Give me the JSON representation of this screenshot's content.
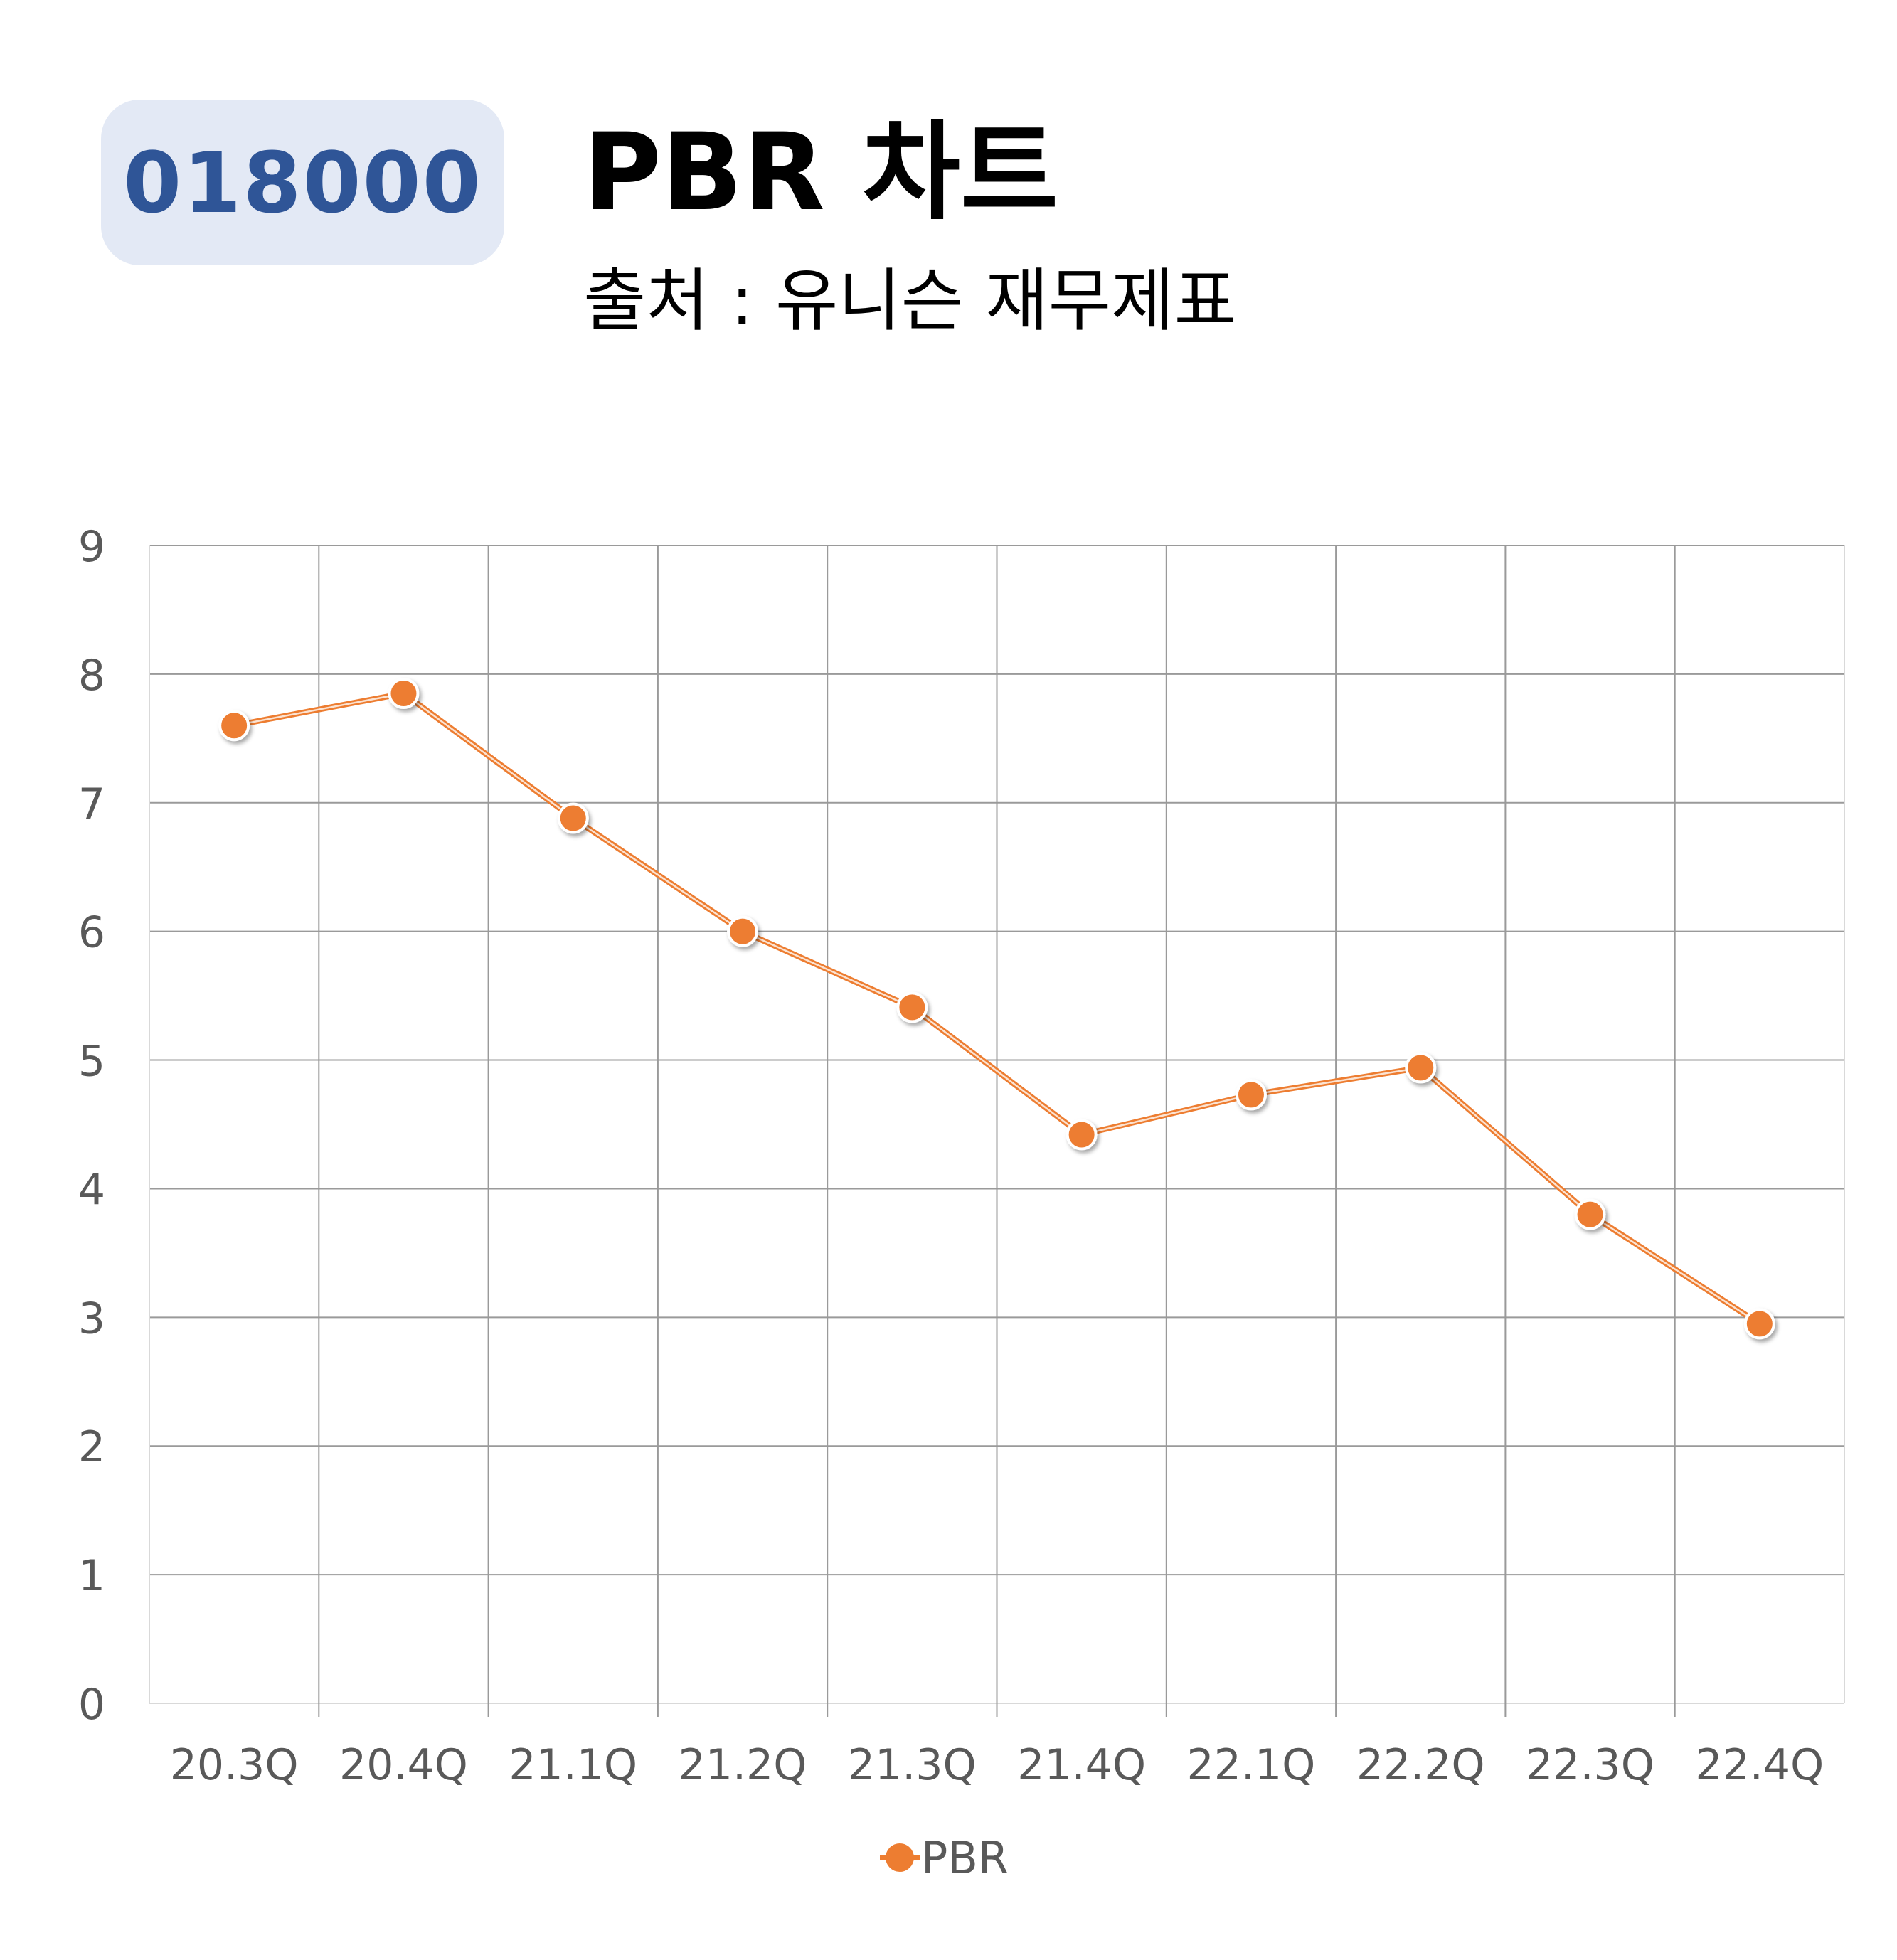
{
  "header": {
    "ticker": "018000",
    "title": "PBR 차트",
    "subtitle": "출처 : 유니슨 재무제표"
  },
  "colors": {
    "series": "#ed7d31",
    "badge_background": "#e3e9f5",
    "badge_text": "#2f5597",
    "grid": "#9a9a9a",
    "tick_text": "#595959"
  },
  "chart_data": {
    "type": "line",
    "title": "PBR 차트",
    "subtitle": "출처 : 유니슨 재무제표",
    "categories": [
      "20.3Q",
      "20.4Q",
      "21.1Q",
      "21.2Q",
      "21.3Q",
      "21.4Q",
      "22.1Q",
      "22.2Q",
      "22.3Q",
      "22.4Q"
    ],
    "series": [
      {
        "name": "PBR",
        "values": [
          7.6,
          7.85,
          6.88,
          6.0,
          5.41,
          4.42,
          4.73,
          4.94,
          3.8,
          2.95
        ]
      }
    ],
    "y_ticks": [
      "0",
      "1",
      "2",
      "3",
      "4",
      "5",
      "6",
      "7",
      "8",
      "9"
    ],
    "ylim": [
      0,
      9
    ],
    "xlabel": "",
    "ylabel": "",
    "grid": true,
    "legend": "bottom-center",
    "markers": "circle"
  }
}
